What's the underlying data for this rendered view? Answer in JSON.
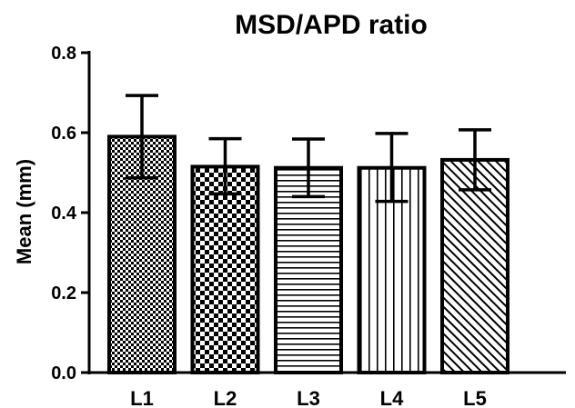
{
  "chart_data": {
    "type": "bar",
    "title": "MSD/APD ratio",
    "xlabel": "",
    "ylabel": "Mean (mm)",
    "ylim": [
      0,
      0.8
    ],
    "yticks": [
      "0.0",
      "0.2",
      "0.4",
      "0.6",
      "0.8"
    ],
    "categories": [
      "L1",
      "L2",
      "L3",
      "L4",
      "L5"
    ],
    "values": [
      0.59,
      0.515,
      0.512,
      0.512,
      0.532
    ],
    "error_high": [
      0.693,
      0.585,
      0.584,
      0.598,
      0.607
    ],
    "error_low": [
      0.487,
      0.447,
      0.44,
      0.428,
      0.457
    ],
    "fill_patterns": [
      "fine-checker",
      "checker",
      "horizontal-lines",
      "vertical-lines",
      "diagonal-lines"
    ],
    "grid": false,
    "legend": "none",
    "colors": {
      "stroke": "#000000",
      "background": "#ffffff"
    }
  }
}
